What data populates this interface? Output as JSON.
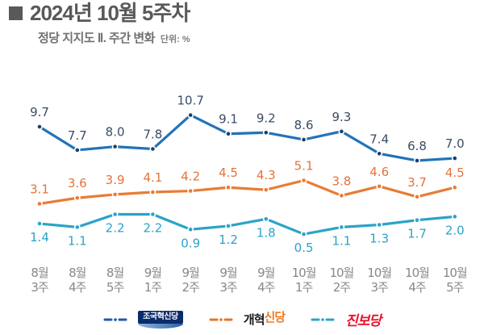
{
  "header": {
    "title": "2024년 10월 5주차",
    "subtitle": "정당 지지도 Ⅱ. 주간 변화",
    "unit_label": "단위: %"
  },
  "chart_data": {
    "type": "line",
    "title": "정당 지지도 Ⅱ. 주간 변화",
    "unit": "%",
    "categories": [
      [
        "8월",
        "3주"
      ],
      [
        "8월",
        "4주"
      ],
      [
        "8월",
        "5주"
      ],
      [
        "9월",
        "1주"
      ],
      [
        "9월",
        "2주"
      ],
      [
        "9월",
        "3주"
      ],
      [
        "9월",
        "4주"
      ],
      [
        "10월",
        "1주"
      ],
      [
        "10월",
        "2주"
      ],
      [
        "10월",
        "3주"
      ],
      [
        "10월",
        "4주"
      ],
      [
        "10월",
        "5주"
      ]
    ],
    "series": [
      {
        "name": "조국혁신당",
        "line_color": "#2273B9",
        "dot_color": "#1D3E6E",
        "label_color": "#3A4C63",
        "label_position": "above",
        "values": [
          9.7,
          7.7,
          8.0,
          7.8,
          10.7,
          9.1,
          9.2,
          8.6,
          9.3,
          7.4,
          6.8,
          7.0
        ]
      },
      {
        "name": "개혁신당",
        "line_color": "#E87C35",
        "dot_color": "#E87C35",
        "label_color": "#E2743B",
        "label_position": "above",
        "values": [
          3.1,
          3.6,
          3.9,
          4.1,
          4.2,
          4.5,
          4.3,
          5.1,
          3.8,
          4.6,
          3.7,
          4.5
        ]
      },
      {
        "name": "진보당",
        "line_color": "#2BA3C8",
        "dot_color": "#2BA3C8",
        "label_color": "#2BA3C8",
        "label_position": "below",
        "values": [
          1.4,
          1.1,
          2.2,
          2.2,
          0.9,
          1.2,
          1.8,
          0.5,
          1.1,
          1.3,
          1.7,
          2.0
        ]
      }
    ],
    "ylim": [
      0,
      12
    ],
    "grid": false,
    "y_axis_visible": false,
    "legend_position": "bottom",
    "axis_label_color": "#86888B"
  },
  "legend": {
    "items": [
      {
        "party": "조국혁신당",
        "line_color": "#1E5AA8",
        "logo_bg": "#0B2B6B",
        "logo_text_color": "#FFFFFF"
      },
      {
        "party": "개혁신당",
        "label_left": "개혁",
        "label_right": "신당",
        "line_color": "#E87425",
        "left_color": "#17181A",
        "right_color": "#F47920"
      },
      {
        "party": "진보당",
        "line_color": "#2BA3C8",
        "text_color": "#E8112D"
      }
    ]
  }
}
